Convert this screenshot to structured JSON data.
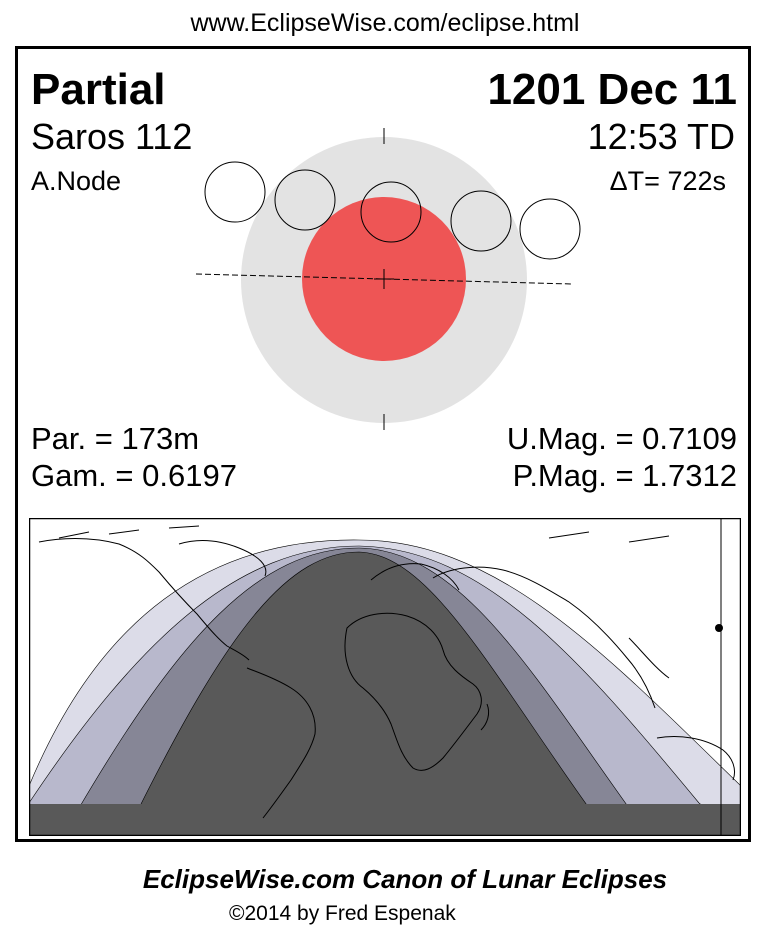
{
  "header": {
    "url": "www.EclipseWise.com/eclipse.html"
  },
  "eclipse": {
    "type": "Partial",
    "date": "1201 Dec 11",
    "saros": "Saros 112",
    "time": "12:53 TD",
    "node": "A.Node",
    "delta_t": "ΔT=    722s",
    "parameters": {
      "par": "Par. = 173m",
      "gam": "Gam. = 0.6197",
      "umag": "U.Mag. = 0.7109",
      "pmag": "P.Mag. = 1.7312"
    }
  },
  "diagram": {
    "colors": {
      "penumbra": "#e3e3e3",
      "umbra": "#ee5555",
      "moon_fill": "#ffffff",
      "outline": "#000000"
    },
    "moon_positions": 5
  },
  "map": {
    "colors": {
      "umbral_visible": "#595959",
      "partial_visible": "#868696",
      "penumbral_visible": "#b8b8cc",
      "faint_penumbral": "#dcdce8",
      "ocean": "#ffffff"
    }
  },
  "footer": {
    "title": "EclipseWise.com Canon of Lunar Eclipses",
    "credit": "©2014 by Fred Espenak"
  }
}
